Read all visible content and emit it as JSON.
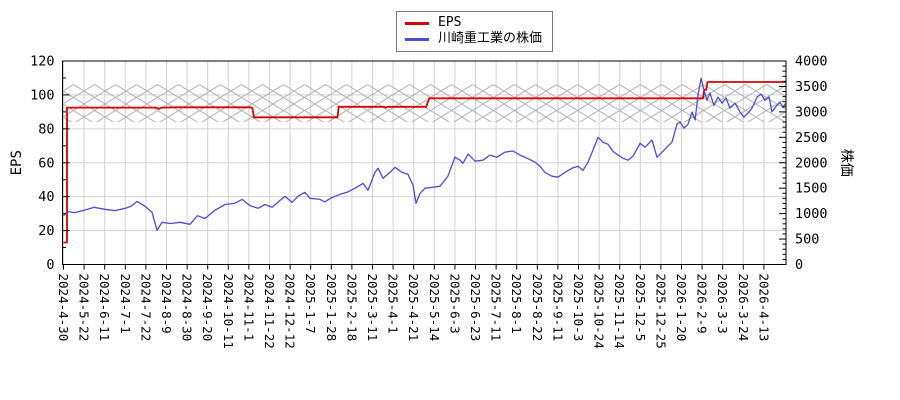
{
  "legend": {
    "items": [
      {
        "label": "EPS",
        "color": "#dd0000"
      },
      {
        "label": "川崎重工業の株価",
        "color": "#4c4cd4"
      }
    ]
  },
  "chart_data": {
    "type": "line",
    "title": "",
    "ylabel_left": "EPS",
    "ylabel_right": "株価",
    "grid": true,
    "legend_position": "top-center",
    "colors": {
      "eps": "#dd0000",
      "price": "#4c4cd4",
      "grid": "#d2d2d2",
      "hatch": "#b3b3b3",
      "axis": "#000000"
    },
    "left_axis": {
      "label": "EPS",
      "min": 0,
      "max": 120,
      "major_step": 20,
      "minor_step": 10
    },
    "right_axis": {
      "label": "株価",
      "min": 0,
      "max": 4000,
      "major_step": 500,
      "minor_step": 100
    },
    "x_tick_labels": [
      "2024-4-30",
      "2024-5-22",
      "2024-6-11",
      "2024-7-1",
      "2024-7-22",
      "2024-8-9",
      "2024-8-30",
      "2024-9-20",
      "2024-10-11",
      "2024-11-1",
      "2024-11-22",
      "2024-12-12",
      "2025-1-7",
      "2025-1-28",
      "2025-2-18",
      "2025-3-11",
      "2025-4-1",
      "2025-4-21",
      "2025-5-14",
      "2025-6-3",
      "2025-6-23",
      "2025-7-11",
      "2025-8-1",
      "2025-8-22",
      "2025-9-11",
      "2025-10-3",
      "2025-10-24",
      "2025-11-14",
      "2025-12-5",
      "2025-12-25",
      "2026-1-20",
      "2026-2-9",
      "2026-3-3",
      "2026-3-24",
      "2026-4-13"
    ],
    "band": {
      "name": "eps-range-hatch-band",
      "axis": "left",
      "min": 84,
      "max": 106.2
    },
    "series": [
      {
        "name": "EPS",
        "axis": "left",
        "step_like": true,
        "points": [
          [
            0,
            13
          ],
          [
            0.17,
            13
          ],
          [
            0.17,
            92.5
          ],
          [
            4.5,
            92.5
          ],
          [
            4.62,
            91.8
          ],
          [
            4.78,
            92.5
          ],
          [
            5.5,
            92.7
          ],
          [
            9.1,
            92.7
          ],
          [
            9.18,
            92.0
          ],
          [
            9.24,
            86.8
          ],
          [
            13.3,
            86.8
          ],
          [
            13.36,
            93.0
          ],
          [
            15.55,
            93.0
          ],
          [
            15.62,
            92.5
          ],
          [
            15.72,
            93.0
          ],
          [
            17.6,
            93.0
          ],
          [
            17.68,
            95.5
          ],
          [
            17.76,
            98.0
          ],
          [
            31.05,
            98.0
          ],
          [
            31.1,
            103.0
          ],
          [
            31.2,
            103.0
          ],
          [
            31.26,
            107.6
          ],
          [
            35.07,
            107.6
          ]
        ]
      },
      {
        "name": "川崎重工業の株価",
        "axis": "right",
        "points": [
          [
            0,
            960
          ],
          [
            0.2,
            1040
          ],
          [
            0.55,
            1020
          ],
          [
            1.0,
            1065
          ],
          [
            1.5,
            1125
          ],
          [
            2.0,
            1085
          ],
          [
            2.5,
            1060
          ],
          [
            3.0,
            1105
          ],
          [
            3.3,
            1150
          ],
          [
            3.57,
            1240
          ],
          [
            3.95,
            1145
          ],
          [
            4.3,
            1025
          ],
          [
            4.54,
            670
          ],
          [
            4.78,
            830
          ],
          [
            5.2,
            805
          ],
          [
            5.65,
            830
          ],
          [
            6.14,
            790
          ],
          [
            6.5,
            960
          ],
          [
            6.87,
            905
          ],
          [
            7.35,
            1065
          ],
          [
            7.84,
            1180
          ],
          [
            8.3,
            1200
          ],
          [
            8.67,
            1280
          ],
          [
            9.05,
            1160
          ],
          [
            9.44,
            1105
          ],
          [
            9.78,
            1180
          ],
          [
            10.12,
            1125
          ],
          [
            10.51,
            1260
          ],
          [
            10.75,
            1340
          ],
          [
            11.09,
            1220
          ],
          [
            11.38,
            1340
          ],
          [
            11.72,
            1420
          ],
          [
            11.97,
            1300
          ],
          [
            12.45,
            1280
          ],
          [
            12.69,
            1230
          ],
          [
            12.94,
            1300
          ],
          [
            13.42,
            1380
          ],
          [
            13.76,
            1420
          ],
          [
            14.15,
            1500
          ],
          [
            14.54,
            1595
          ],
          [
            14.78,
            1460
          ],
          [
            15.12,
            1810
          ],
          [
            15.27,
            1890
          ],
          [
            15.51,
            1695
          ],
          [
            15.85,
            1810
          ],
          [
            16.09,
            1910
          ],
          [
            16.43,
            1810
          ],
          [
            16.72,
            1775
          ],
          [
            16.97,
            1555
          ],
          [
            17.11,
            1200
          ],
          [
            17.31,
            1400
          ],
          [
            17.55,
            1500
          ],
          [
            17.89,
            1515
          ],
          [
            18.28,
            1540
          ],
          [
            18.66,
            1735
          ],
          [
            19.0,
            2110
          ],
          [
            19.25,
            2050
          ],
          [
            19.39,
            1990
          ],
          [
            19.64,
            2170
          ],
          [
            19.98,
            2030
          ],
          [
            20.36,
            2050
          ],
          [
            20.7,
            2150
          ],
          [
            21.04,
            2110
          ],
          [
            21.43,
            2210
          ],
          [
            21.82,
            2230
          ],
          [
            22.16,
            2150
          ],
          [
            22.5,
            2090
          ],
          [
            22.89,
            2010
          ],
          [
            23.13,
            1930
          ],
          [
            23.37,
            1810
          ],
          [
            23.71,
            1735
          ],
          [
            24.0,
            1715
          ],
          [
            24.34,
            1810
          ],
          [
            24.68,
            1890
          ],
          [
            24.98,
            1930
          ],
          [
            25.22,
            1850
          ],
          [
            25.46,
            2010
          ],
          [
            25.7,
            2245
          ],
          [
            25.95,
            2500
          ],
          [
            26.19,
            2400
          ],
          [
            26.43,
            2365
          ],
          [
            26.67,
            2225
          ],
          [
            26.92,
            2150
          ],
          [
            27.16,
            2090
          ],
          [
            27.4,
            2050
          ],
          [
            27.65,
            2130
          ],
          [
            27.99,
            2385
          ],
          [
            28.23,
            2305
          ],
          [
            28.57,
            2445
          ],
          [
            28.81,
            2110
          ],
          [
            29.05,
            2205
          ],
          [
            29.34,
            2325
          ],
          [
            29.54,
            2405
          ],
          [
            29.78,
            2760
          ],
          [
            29.93,
            2800
          ],
          [
            30.12,
            2680
          ],
          [
            30.32,
            2760
          ],
          [
            30.51,
            2995
          ],
          [
            30.66,
            2840
          ],
          [
            30.8,
            3330
          ],
          [
            30.95,
            3660
          ],
          [
            31.09,
            3430
          ],
          [
            31.24,
            3230
          ],
          [
            31.38,
            3370
          ],
          [
            31.58,
            3130
          ],
          [
            31.77,
            3290
          ],
          [
            31.97,
            3170
          ],
          [
            32.16,
            3270
          ],
          [
            32.35,
            3075
          ],
          [
            32.6,
            3170
          ],
          [
            32.84,
            2995
          ],
          [
            33.03,
            2895
          ],
          [
            33.23,
            2975
          ],
          [
            33.42,
            3075
          ],
          [
            33.67,
            3290
          ],
          [
            33.86,
            3350
          ],
          [
            34.05,
            3230
          ],
          [
            34.25,
            3290
          ],
          [
            34.39,
            3000
          ],
          [
            34.59,
            3110
          ],
          [
            34.78,
            3190
          ],
          [
            34.93,
            3090
          ],
          [
            35.07,
            3170
          ]
        ]
      }
    ]
  }
}
